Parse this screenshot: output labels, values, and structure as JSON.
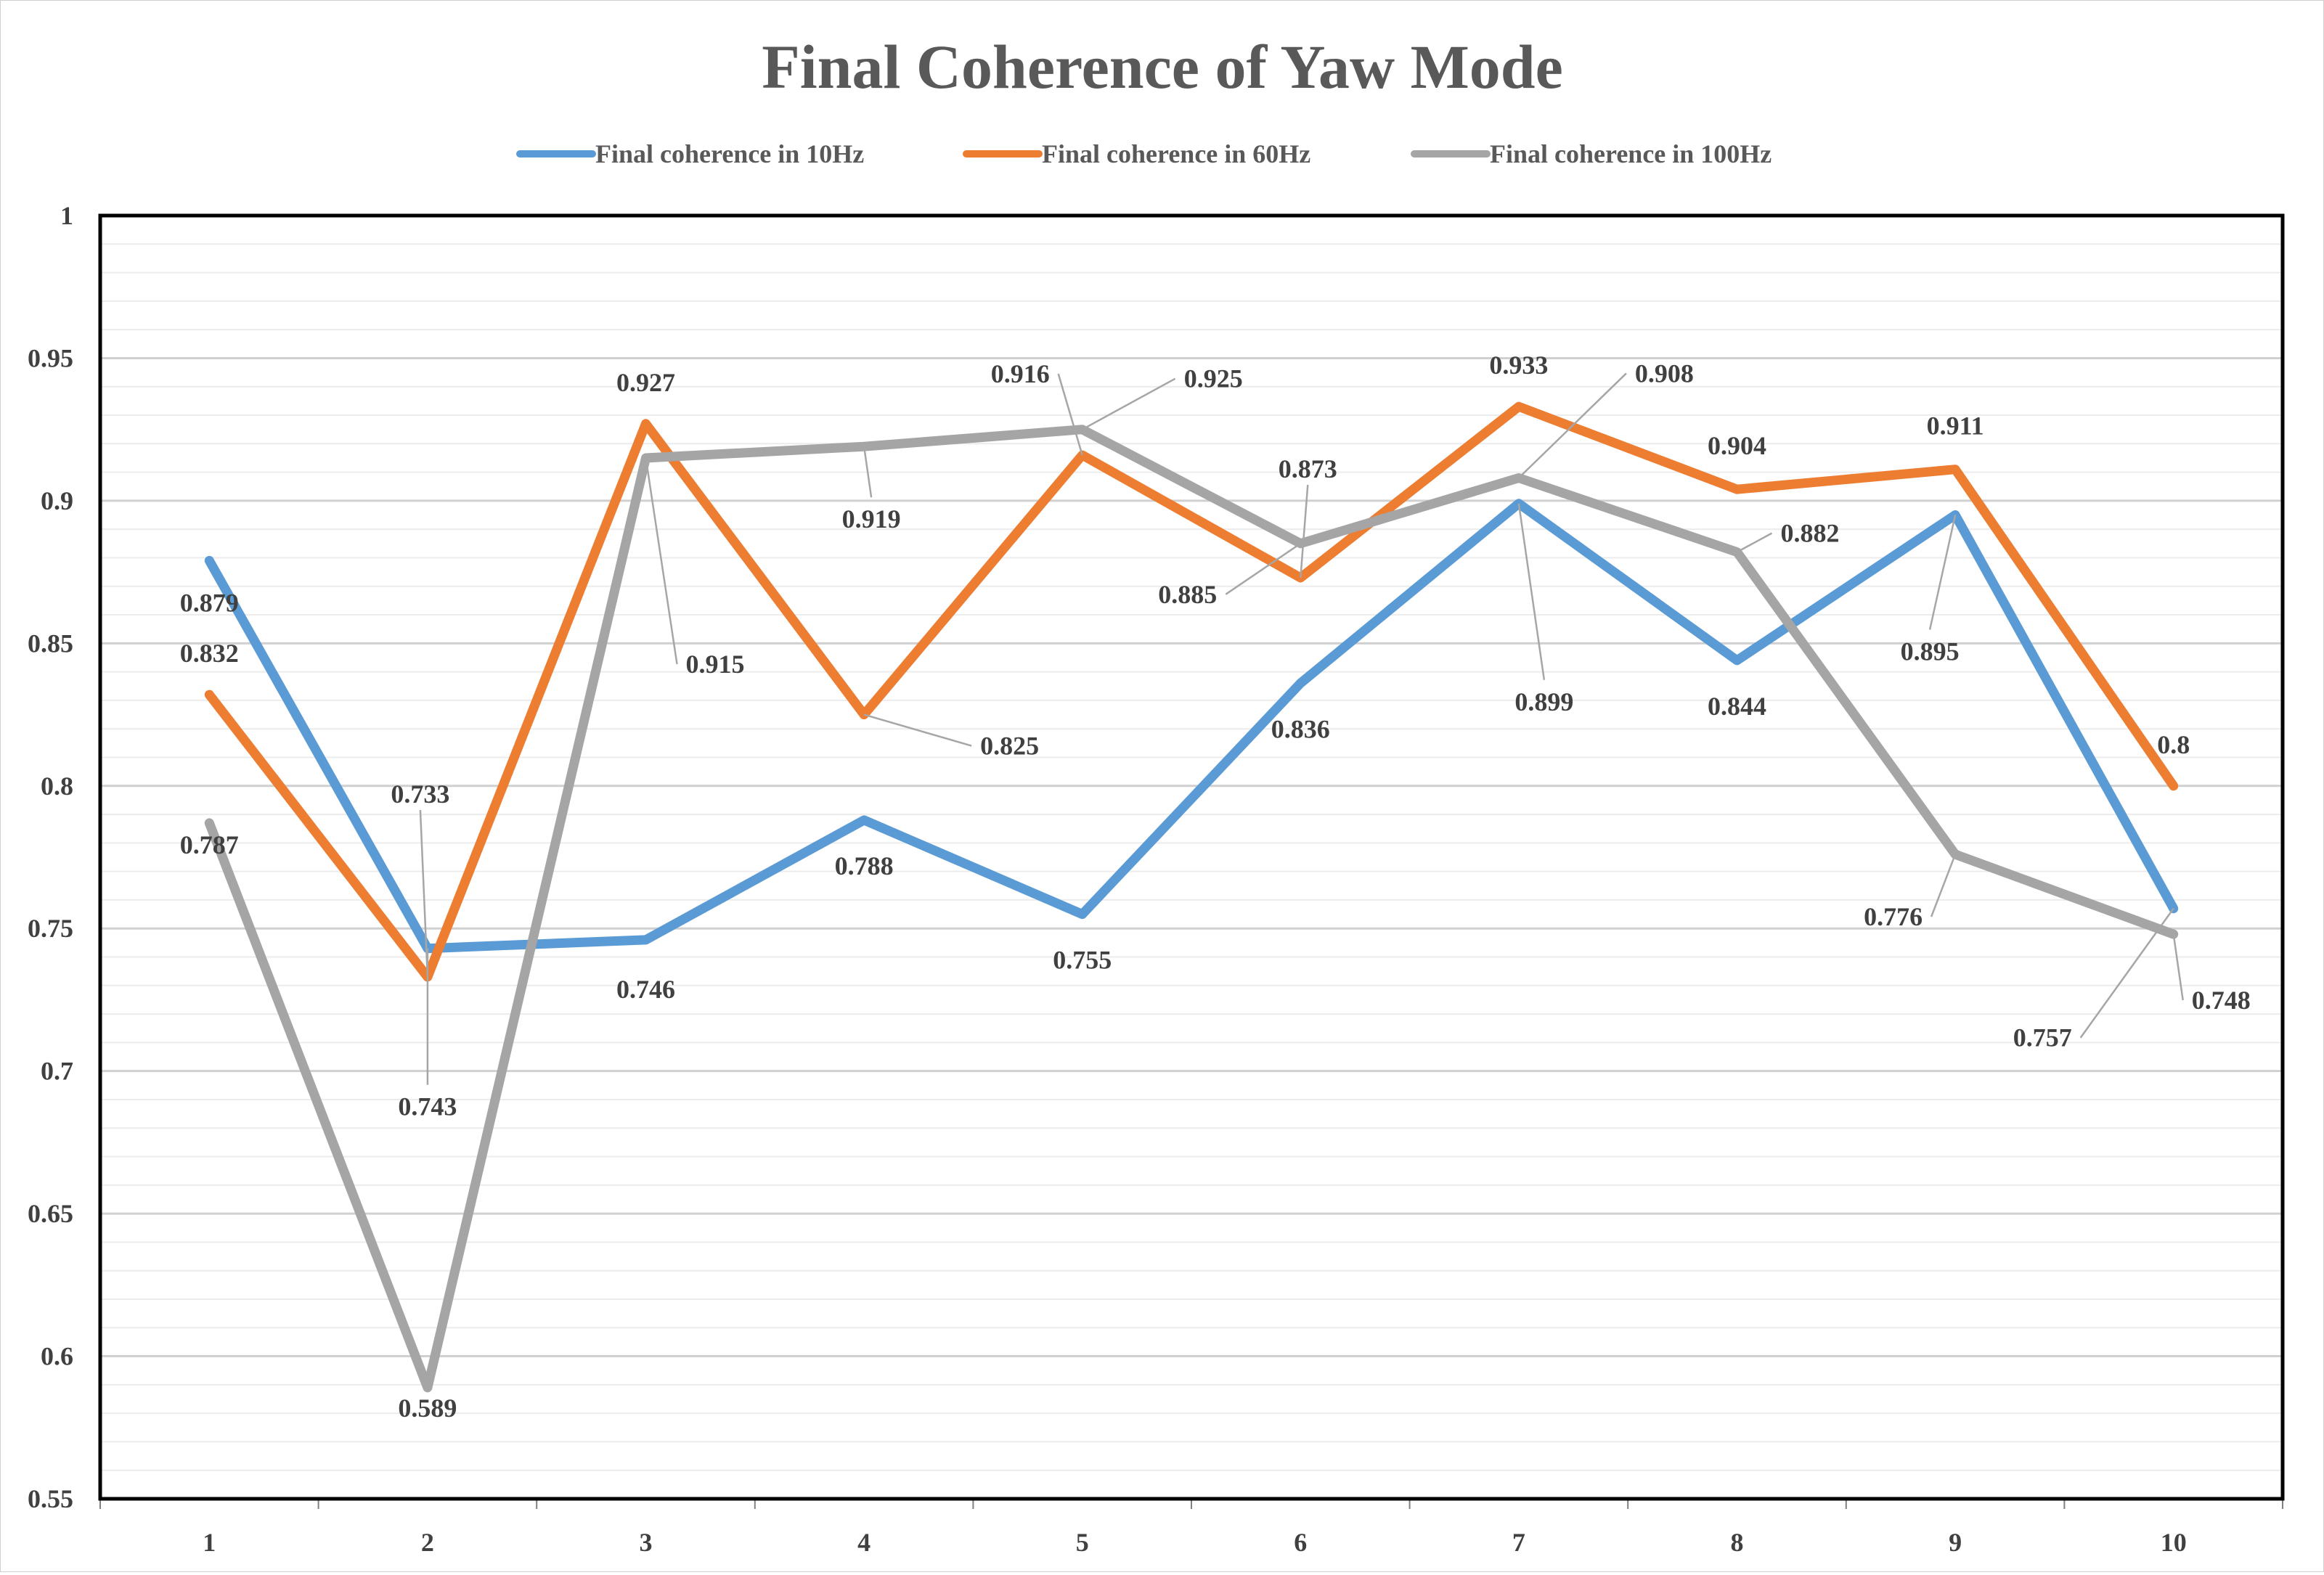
{
  "chart_data": {
    "type": "line",
    "title": "Final Coherence of Yaw Mode",
    "xlabel": "",
    "ylabel": "",
    "x": [
      "1",
      "2",
      "3",
      "4",
      "5",
      "6",
      "7",
      "8",
      "9",
      "10"
    ],
    "ylim": [
      0.55,
      1
    ],
    "y_ticks": [
      "0.55",
      "0.6",
      "0.65",
      "0.7",
      "0.75",
      "0.8",
      "0.85",
      "0.9",
      "0.95",
      "1"
    ],
    "grid": true,
    "legend_position": "top",
    "series": [
      {
        "name": "Final coherence in 10Hz",
        "color": "#5B9BD5",
        "values": [
          0.879,
          0.743,
          0.746,
          0.788,
          0.755,
          0.836,
          0.899,
          0.844,
          0.895,
          0.757
        ],
        "labels": [
          "0.879",
          "0.743",
          "0.746",
          "0.788",
          "0.755",
          "0.836",
          "0.899",
          "0.844",
          "0.895",
          "0.757"
        ]
      },
      {
        "name": "Final coherence in 60Hz",
        "color": "#ED7D31",
        "values": [
          0.832,
          0.733,
          0.927,
          0.825,
          0.916,
          0.873,
          0.933,
          0.904,
          0.911,
          0.8
        ],
        "labels": [
          "0.832",
          "0.733",
          "0.927",
          "0.825",
          "0.916",
          "0.873",
          "0.933",
          "0.904",
          "0.911",
          "0.8"
        ]
      },
      {
        "name": "Final coherence in 100Hz",
        "color": "#A5A5A5",
        "values": [
          0.787,
          0.589,
          0.915,
          0.919,
          0.925,
          0.885,
          0.908,
          0.882,
          0.776,
          0.748
        ],
        "labels": [
          "0.787",
          "0.589",
          "0.915",
          "0.919",
          "0.925",
          "0.885",
          "0.908",
          "0.882",
          "0.776",
          "0.748"
        ]
      }
    ]
  }
}
